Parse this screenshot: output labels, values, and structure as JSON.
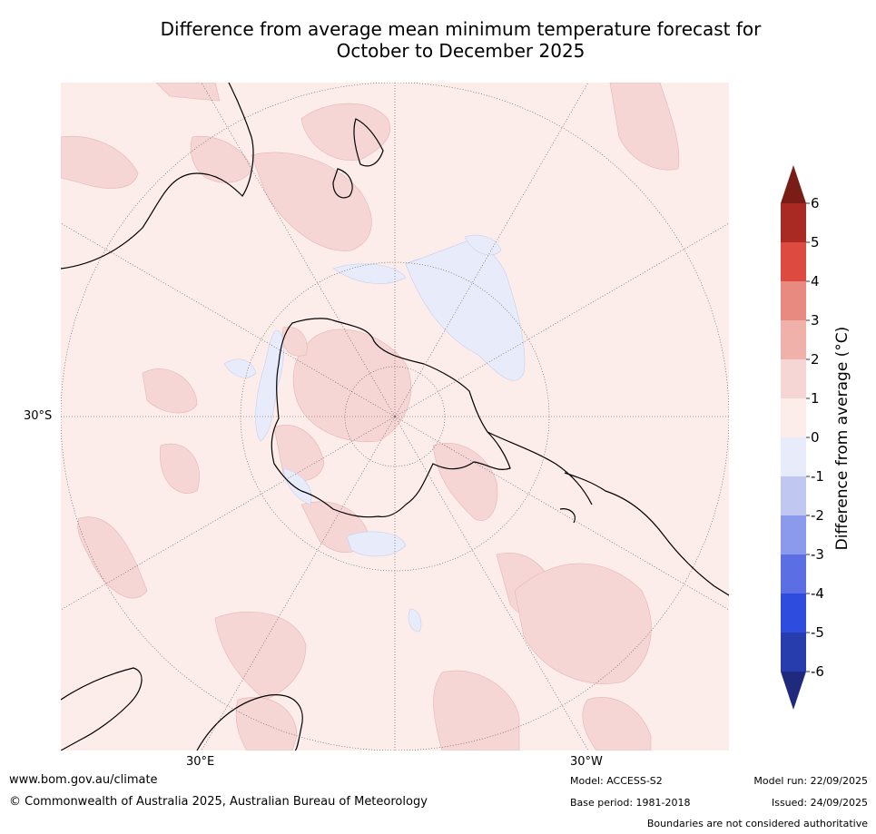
{
  "title": {
    "line1": "Difference from average mean minimum temperature forecast for",
    "line2": "October to December 2025"
  },
  "map": {
    "projection": "south polar stereographic",
    "lat_label": "30°S",
    "lon_labels": [
      "30°E",
      "30°W"
    ]
  },
  "colorbar": {
    "title": "Difference from average (°C)",
    "ticks": [
      "6",
      "5",
      "4",
      "3",
      "2",
      "1",
      "0",
      "-1",
      "-2",
      "-3",
      "-4",
      "-5",
      "-6"
    ],
    "colors": {
      "above_6": "#7a1d17",
      "5_to_6": "#a92a22",
      "4_to_5": "#dd4a40",
      "3_to_4": "#e98a80",
      "2_to_3": "#efb1aa",
      "1_to_2": "#f5d6d4",
      "0_to_1": "#fcecea",
      "-1_to_0": "#e8ecfa",
      "-2_to_-1": "#c0c8f1",
      "-3_to_-2": "#8b9aec",
      "-4_to_-3": "#5c6ee4",
      "-5_to_-4": "#2e4ddf",
      "-6_to_-5": "#273dad",
      "below_-6": "#1f2a7e"
    }
  },
  "footer": {
    "website": "www.bom.gov.au/climate",
    "copyright": "© Commonwealth of Australia 2025, Australian Bureau of Meteorology",
    "model": "Model: ACCESS-S2",
    "base_period": "Base period: 1981-2018",
    "model_run": "Model run: 22/09/2025",
    "issued": "Issued: 24/09/2025",
    "disclaimer": "Boundaries are not considered authoritative"
  }
}
